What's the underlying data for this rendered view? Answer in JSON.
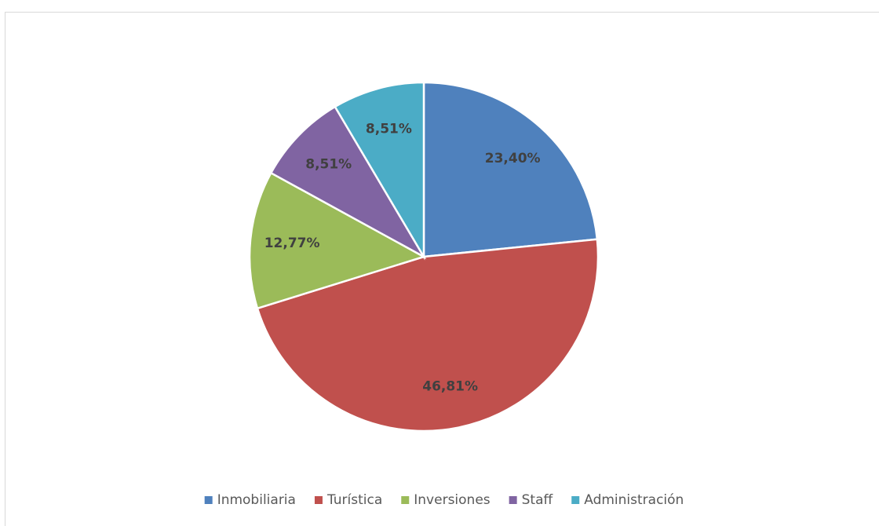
{
  "chart_data": {
    "type": "pie",
    "categories": [
      "Inmobiliaria",
      "Turística",
      "Inversiones",
      "Staff",
      "Administración"
    ],
    "values": [
      23.4,
      46.81,
      12.77,
      8.51,
      8.51
    ],
    "value_labels": [
      "23,40%",
      "46,81%",
      "12,77%",
      "8,51%",
      "8,51%"
    ],
    "colors": [
      "#4f81bd",
      "#c0504d",
      "#9bbb59",
      "#8064a2",
      "#4bacc6"
    ],
    "legend": "bottom"
  }
}
